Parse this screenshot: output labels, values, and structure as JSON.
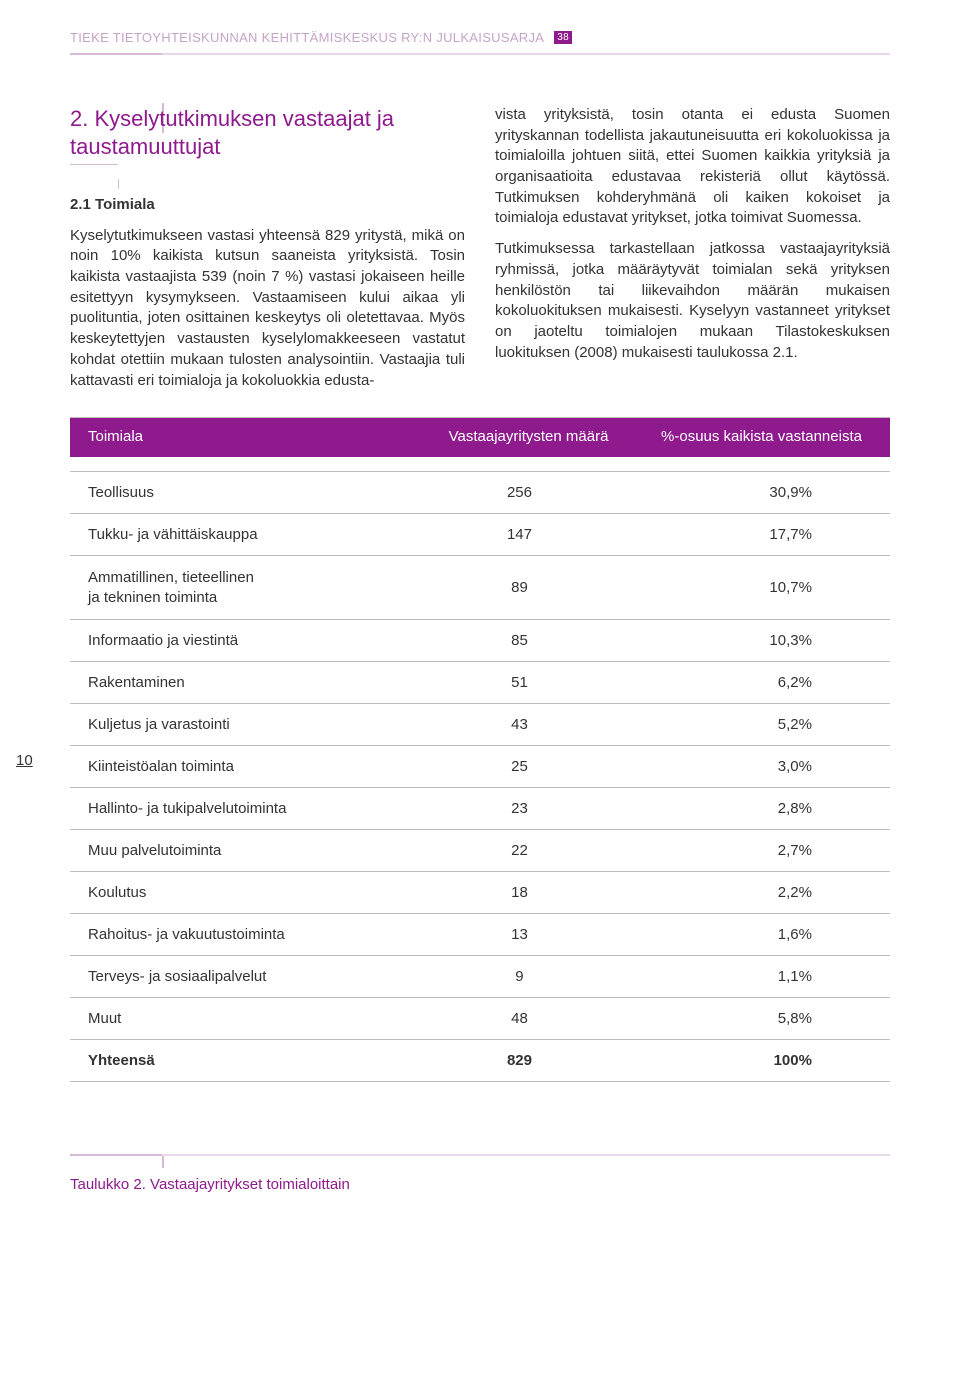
{
  "header": {
    "publisher": "TIEKE TIETOYHTEISKUNNAN KEHITTÄMISKESKUS RY:N JULKAISUSARJA",
    "pub_number": "38"
  },
  "page_number": "10",
  "title": "2. Kyselytutkimuksen vastaajat ja taustamuuttujat",
  "subhead": "2.1 Toimiala",
  "body_left": "Kyselytutkimukseen vastasi yhteensä 829 yritystä, mikä on noin 10% kaikista kutsun saaneista yrityksistä. Tosin kaikista vastaajista 539 (noin 7 %) vastasi jokaiseen heille esitettyyn kysymykseen. Vastaamiseen kului aikaa yli puolituntia, joten osittainen keskeytys oli oletettavaa. Myös keskeytettyjen vastausten kyselylomakkeeseen vastatut kohdat otettiin mukaan tulosten analysointiin. Vastaajia tuli kattavasti eri toimialoja ja kokoluokkia edusta-",
  "body_right_1": "vista yrityksistä, tosin otanta ei edusta Suomen yrityskannan todellista jakautuneisuutta eri kokoluokissa ja toimialoilla johtuen siitä, ettei Suomen kaikkia yrityksiä ja organisaatioita edustavaa rekisteriä ollut käytössä. Tutkimuksen kohderyhmänä oli kaiken kokoiset ja toimialoja edustavat yritykset, jotka toimivat Suomessa.",
  "body_right_2": "Tutkimuksessa tarkastellaan jatkossa vastaajayrityksiä ryhmissä, jotka määräytyvät toimialan sekä yrityksen henkilöstön tai liikevaihdon määrän mukaisen kokoluokituksen mukaisesti. Kyselyyn vastanneet yritykset on jaoteltu toimialojen mukaan Tilastokeskuksen luokituksen (2008) mukaisesti taulukossa 2.1.",
  "table": {
    "columns": [
      "Toimiala",
      "Vastaajayritysten määrä",
      "%-osuus kaikista vastanneista"
    ],
    "rows": [
      {
        "label": "Teollisuus",
        "count": "256",
        "pct": "30,9%"
      },
      {
        "label": "Tukku- ja vähittäiskauppa",
        "count": "147",
        "pct": "17,7%"
      },
      {
        "label": "Ammatillinen, tieteellinen\nja tekninen toiminta",
        "count": "89",
        "pct": "10,7%"
      },
      {
        "label": "Informaatio ja viestintä",
        "count": "85",
        "pct": "10,3%"
      },
      {
        "label": "Rakentaminen",
        "count": "51",
        "pct": "6,2%"
      },
      {
        "label": "Kuljetus ja varastointi",
        "count": "43",
        "pct": "5,2%"
      },
      {
        "label": "Kiinteistöalan toiminta",
        "count": "25",
        "pct": "3,0%"
      },
      {
        "label": "Hallinto- ja tukipalvelutoiminta",
        "count": "23",
        "pct": "2,8%"
      },
      {
        "label": "Muu palvelutoiminta",
        "count": "22",
        "pct": "2,7%"
      },
      {
        "label": "Koulutus",
        "count": "18",
        "pct": "2,2%"
      },
      {
        "label": "Rahoitus- ja vakuutustoiminta",
        "count": "13",
        "pct": "1,6%"
      },
      {
        "label": "Terveys- ja sosiaalipalvelut",
        "count": "9",
        "pct": "1,1%"
      },
      {
        "label": "Muut",
        "count": "48",
        "pct": "5,8%"
      }
    ],
    "total": {
      "label": "Yhteensä",
      "count": "829",
      "pct": "100%"
    }
  },
  "caption": "Taulukko 2. Vastaajayritykset toimialoittain",
  "colors": {
    "brand": "#8e1a8e",
    "brand_light": "#d7b9d8",
    "rule_light": "#e8d8e9",
    "text": "#333333",
    "header_text": "#c5a5c7"
  }
}
